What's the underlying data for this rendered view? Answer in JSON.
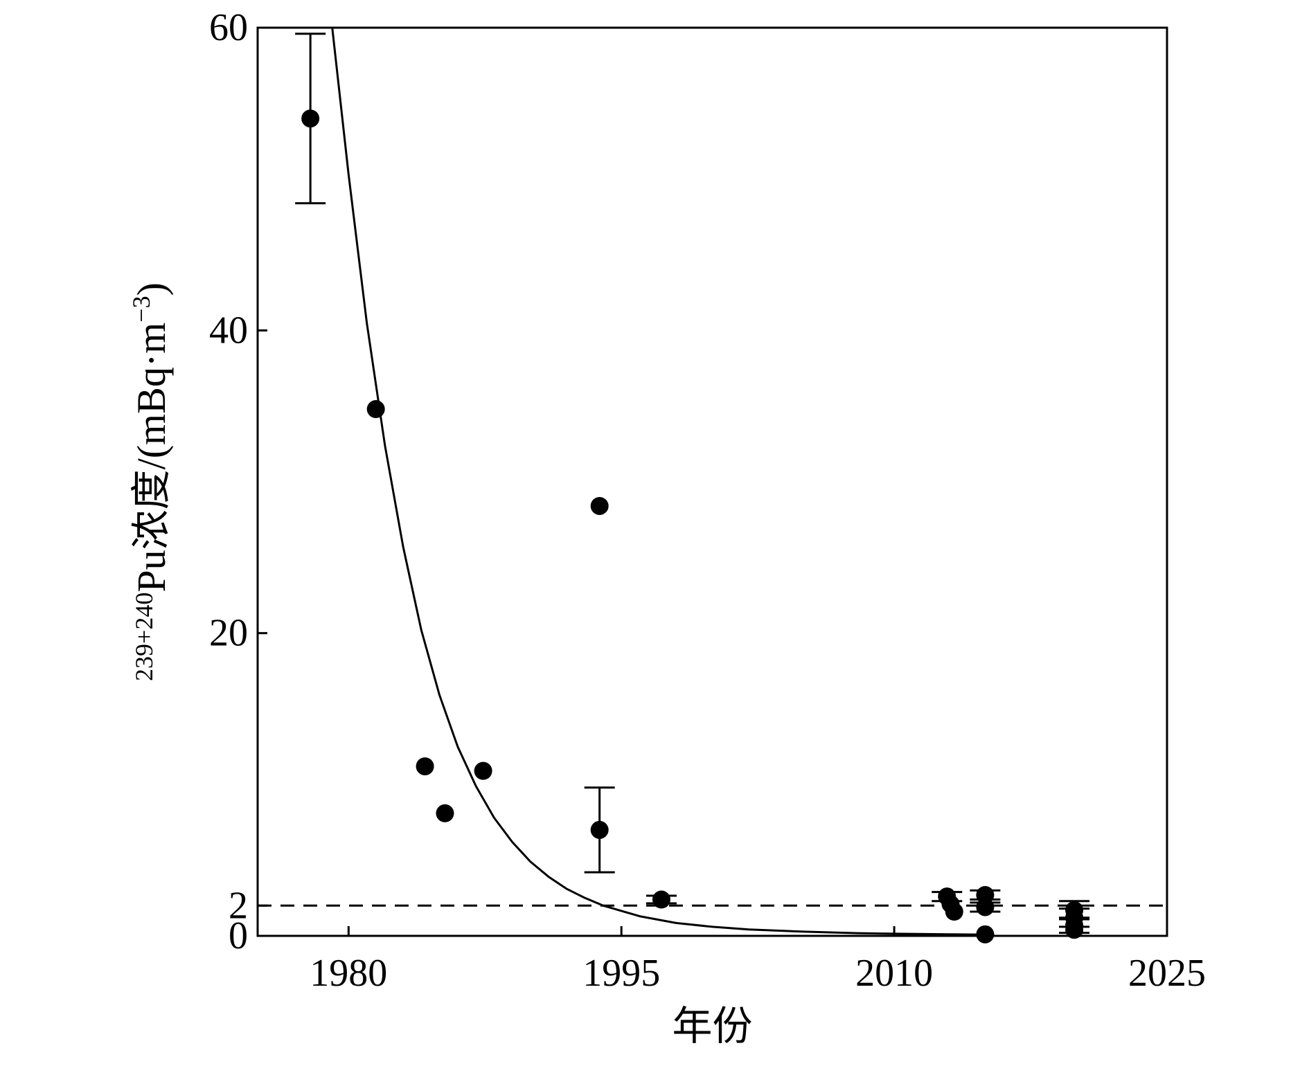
{
  "chart_data": {
    "type": "scatter",
    "xlabel": "年份",
    "ylabel": {
      "superscript": "239+240",
      "text": "Pu浓度/(mBq·m",
      "unit_exponent": "−3",
      "closing": ")"
    },
    "xlim": [
      1975,
      2025
    ],
    "ylim": [
      0,
      60
    ],
    "xticks": [
      1980,
      1995,
      2010,
      2025
    ],
    "yticks": [
      0,
      2,
      20,
      40,
      60
    ],
    "grid": false,
    "legend": "none",
    "colors": {
      "marker": "#000000",
      "line": "#000000"
    },
    "reference_line": {
      "y": 2,
      "style": "dashed"
    },
    "fit_curve": {
      "style": "solid",
      "samples": [
        {
          "x": 1979.1,
          "y": 60.0
        },
        {
          "x": 1980,
          "y": 50.3
        },
        {
          "x": 1981,
          "y": 40.5
        },
        {
          "x": 1982,
          "y": 32.4
        },
        {
          "x": 1983,
          "y": 25.7
        },
        {
          "x": 1984,
          "y": 20.2
        },
        {
          "x": 1985,
          "y": 15.9
        },
        {
          "x": 1986,
          "y": 12.5
        },
        {
          "x": 1987,
          "y": 9.9
        },
        {
          "x": 1988,
          "y": 7.8
        },
        {
          "x": 1989,
          "y": 6.2
        },
        {
          "x": 1990,
          "y": 4.9
        },
        {
          "x": 1991,
          "y": 3.9
        },
        {
          "x": 1992,
          "y": 3.1
        },
        {
          "x": 1993,
          "y": 2.5
        },
        {
          "x": 1994,
          "y": 2.0
        },
        {
          "x": 1996,
          "y": 1.3
        },
        {
          "x": 1998,
          "y": 0.85
        },
        {
          "x": 2000,
          "y": 0.6
        },
        {
          "x": 2002,
          "y": 0.42
        },
        {
          "x": 2005,
          "y": 0.28
        },
        {
          "x": 2008,
          "y": 0.18
        },
        {
          "x": 2010,
          "y": 0.14
        },
        {
          "x": 2013,
          "y": 0.1
        },
        {
          "x": 2015.5,
          "y": 0.08
        }
      ]
    },
    "points": [
      {
        "x": 1977.9,
        "y": 54.0,
        "err": 5.6
      },
      {
        "x": 1981.5,
        "y": 34.8
      },
      {
        "x": 1984.2,
        "y": 11.2
      },
      {
        "x": 1985.3,
        "y": 8.1
      },
      {
        "x": 1987.4,
        "y": 10.9
      },
      {
        "x": 1993.8,
        "y": 28.4
      },
      {
        "x": 1993.8,
        "y": 7.0,
        "err": 2.8
      },
      {
        "x": 1997.2,
        "y": 2.4,
        "err": 0.25
      },
      {
        "x": 2012.9,
        "y": 2.6,
        "err": 0.3
      },
      {
        "x": 2013.3,
        "y": 1.6
      },
      {
        "x": 2013.1,
        "y": 2.1
      },
      {
        "x": 2015.0,
        "y": 2.7,
        "err": 0.3
      },
      {
        "x": 2015.0,
        "y": 1.9,
        "err": 0.3
      },
      {
        "x": 2015.0,
        "y": 0.1
      },
      {
        "x": 2019.9,
        "y": 1.7,
        "err": 0.6
      },
      {
        "x": 2019.9,
        "y": 1.2,
        "err": 0.6
      },
      {
        "x": 2019.9,
        "y": 0.7,
        "err": 0.5
      },
      {
        "x": 2019.9,
        "y": 0.4
      }
    ]
  }
}
